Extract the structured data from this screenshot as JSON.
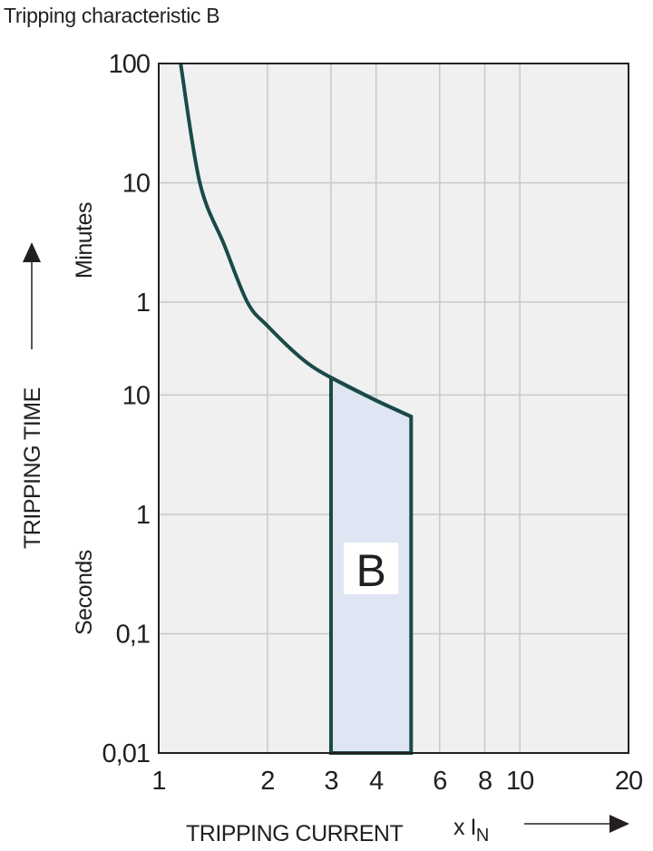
{
  "chart_data": {
    "type": "line",
    "title": "Tripping characteristic B",
    "xlabel": "TRIPPING CURRENT",
    "xunit": "x I",
    "xunit_subscript": "N",
    "ylabel": "TRIPPING TIME",
    "y_unit_groups": [
      "Minutes",
      "Seconds"
    ],
    "x_scale": "log",
    "y_scale": "log",
    "xlim": [
      1,
      20
    ],
    "ylim_seconds": [
      0.01,
      6000
    ],
    "grid": true,
    "x_ticks": [
      {
        "value": 1,
        "label": "1"
      },
      {
        "value": 2,
        "label": "2"
      },
      {
        "value": 3,
        "label": "3"
      },
      {
        "value": 4,
        "label": "4"
      },
      {
        "value": 6,
        "label": "6"
      },
      {
        "value": 8,
        "label": "8"
      },
      {
        "value": 10,
        "label": "10"
      },
      {
        "value": 20,
        "label": "20"
      }
    ],
    "y_ticks": [
      {
        "seconds": 6000,
        "label": "100",
        "unit": "Minutes"
      },
      {
        "seconds": 600,
        "label": "10",
        "unit": "Minutes"
      },
      {
        "seconds": 60,
        "label": "1",
        "unit": "Minutes"
      },
      {
        "seconds": 10,
        "label": "10",
        "unit": "Seconds"
      },
      {
        "seconds": 1,
        "label": "1",
        "unit": "Seconds"
      },
      {
        "seconds": 0.1,
        "label": "0,1",
        "unit": "Seconds"
      },
      {
        "seconds": 0.01,
        "label": "0,01",
        "unit": "Seconds"
      }
    ],
    "curve": {
      "x": [
        1.15,
        1.3,
        1.52,
        1.76,
        2.0,
        2.5,
        3.0,
        4.0,
        5.0
      ],
      "y_seconds": [
        6000,
        600,
        180,
        60,
        38,
        20,
        14,
        9,
        6.6
      ]
    },
    "region": {
      "label": "B",
      "x_range": [
        3,
        5
      ],
      "y_bottom_seconds": 0.01
    },
    "colors": {
      "curve": "#1a4a48",
      "region_fill": "#dfe5f2",
      "plot_bg": "#f0f0f0",
      "grid": "#c8c8c8"
    }
  }
}
